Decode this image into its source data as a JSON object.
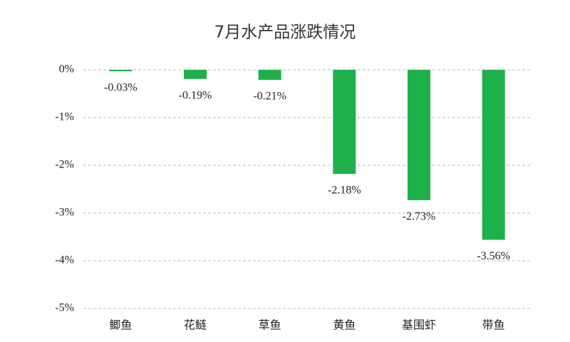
{
  "chart_data": {
    "type": "bar",
    "title": "7月水产品涨跌情况",
    "categories": [
      "鲫鱼",
      "花鲢",
      "草鱼",
      "黄鱼",
      "基围虾",
      "带鱼"
    ],
    "values": [
      -0.03,
      -0.19,
      -0.21,
      -2.18,
      -2.73,
      -3.56
    ],
    "value_labels": [
      "-0.03%",
      "-0.19%",
      "-0.21%",
      "-2.18%",
      "-2.73%",
      "-3.56%"
    ],
    "color": "#1db04b",
    "ylim": [
      -5,
      0
    ],
    "yticks": [
      {
        "value": 0,
        "label": "0%"
      },
      {
        "value": -1,
        "label": "-1%"
      },
      {
        "value": -2,
        "label": "-2%"
      },
      {
        "value": -3,
        "label": "-3%"
      },
      {
        "value": -4,
        "label": "-4%"
      },
      {
        "value": -5,
        "label": "-5%"
      }
    ],
    "grid": true
  }
}
